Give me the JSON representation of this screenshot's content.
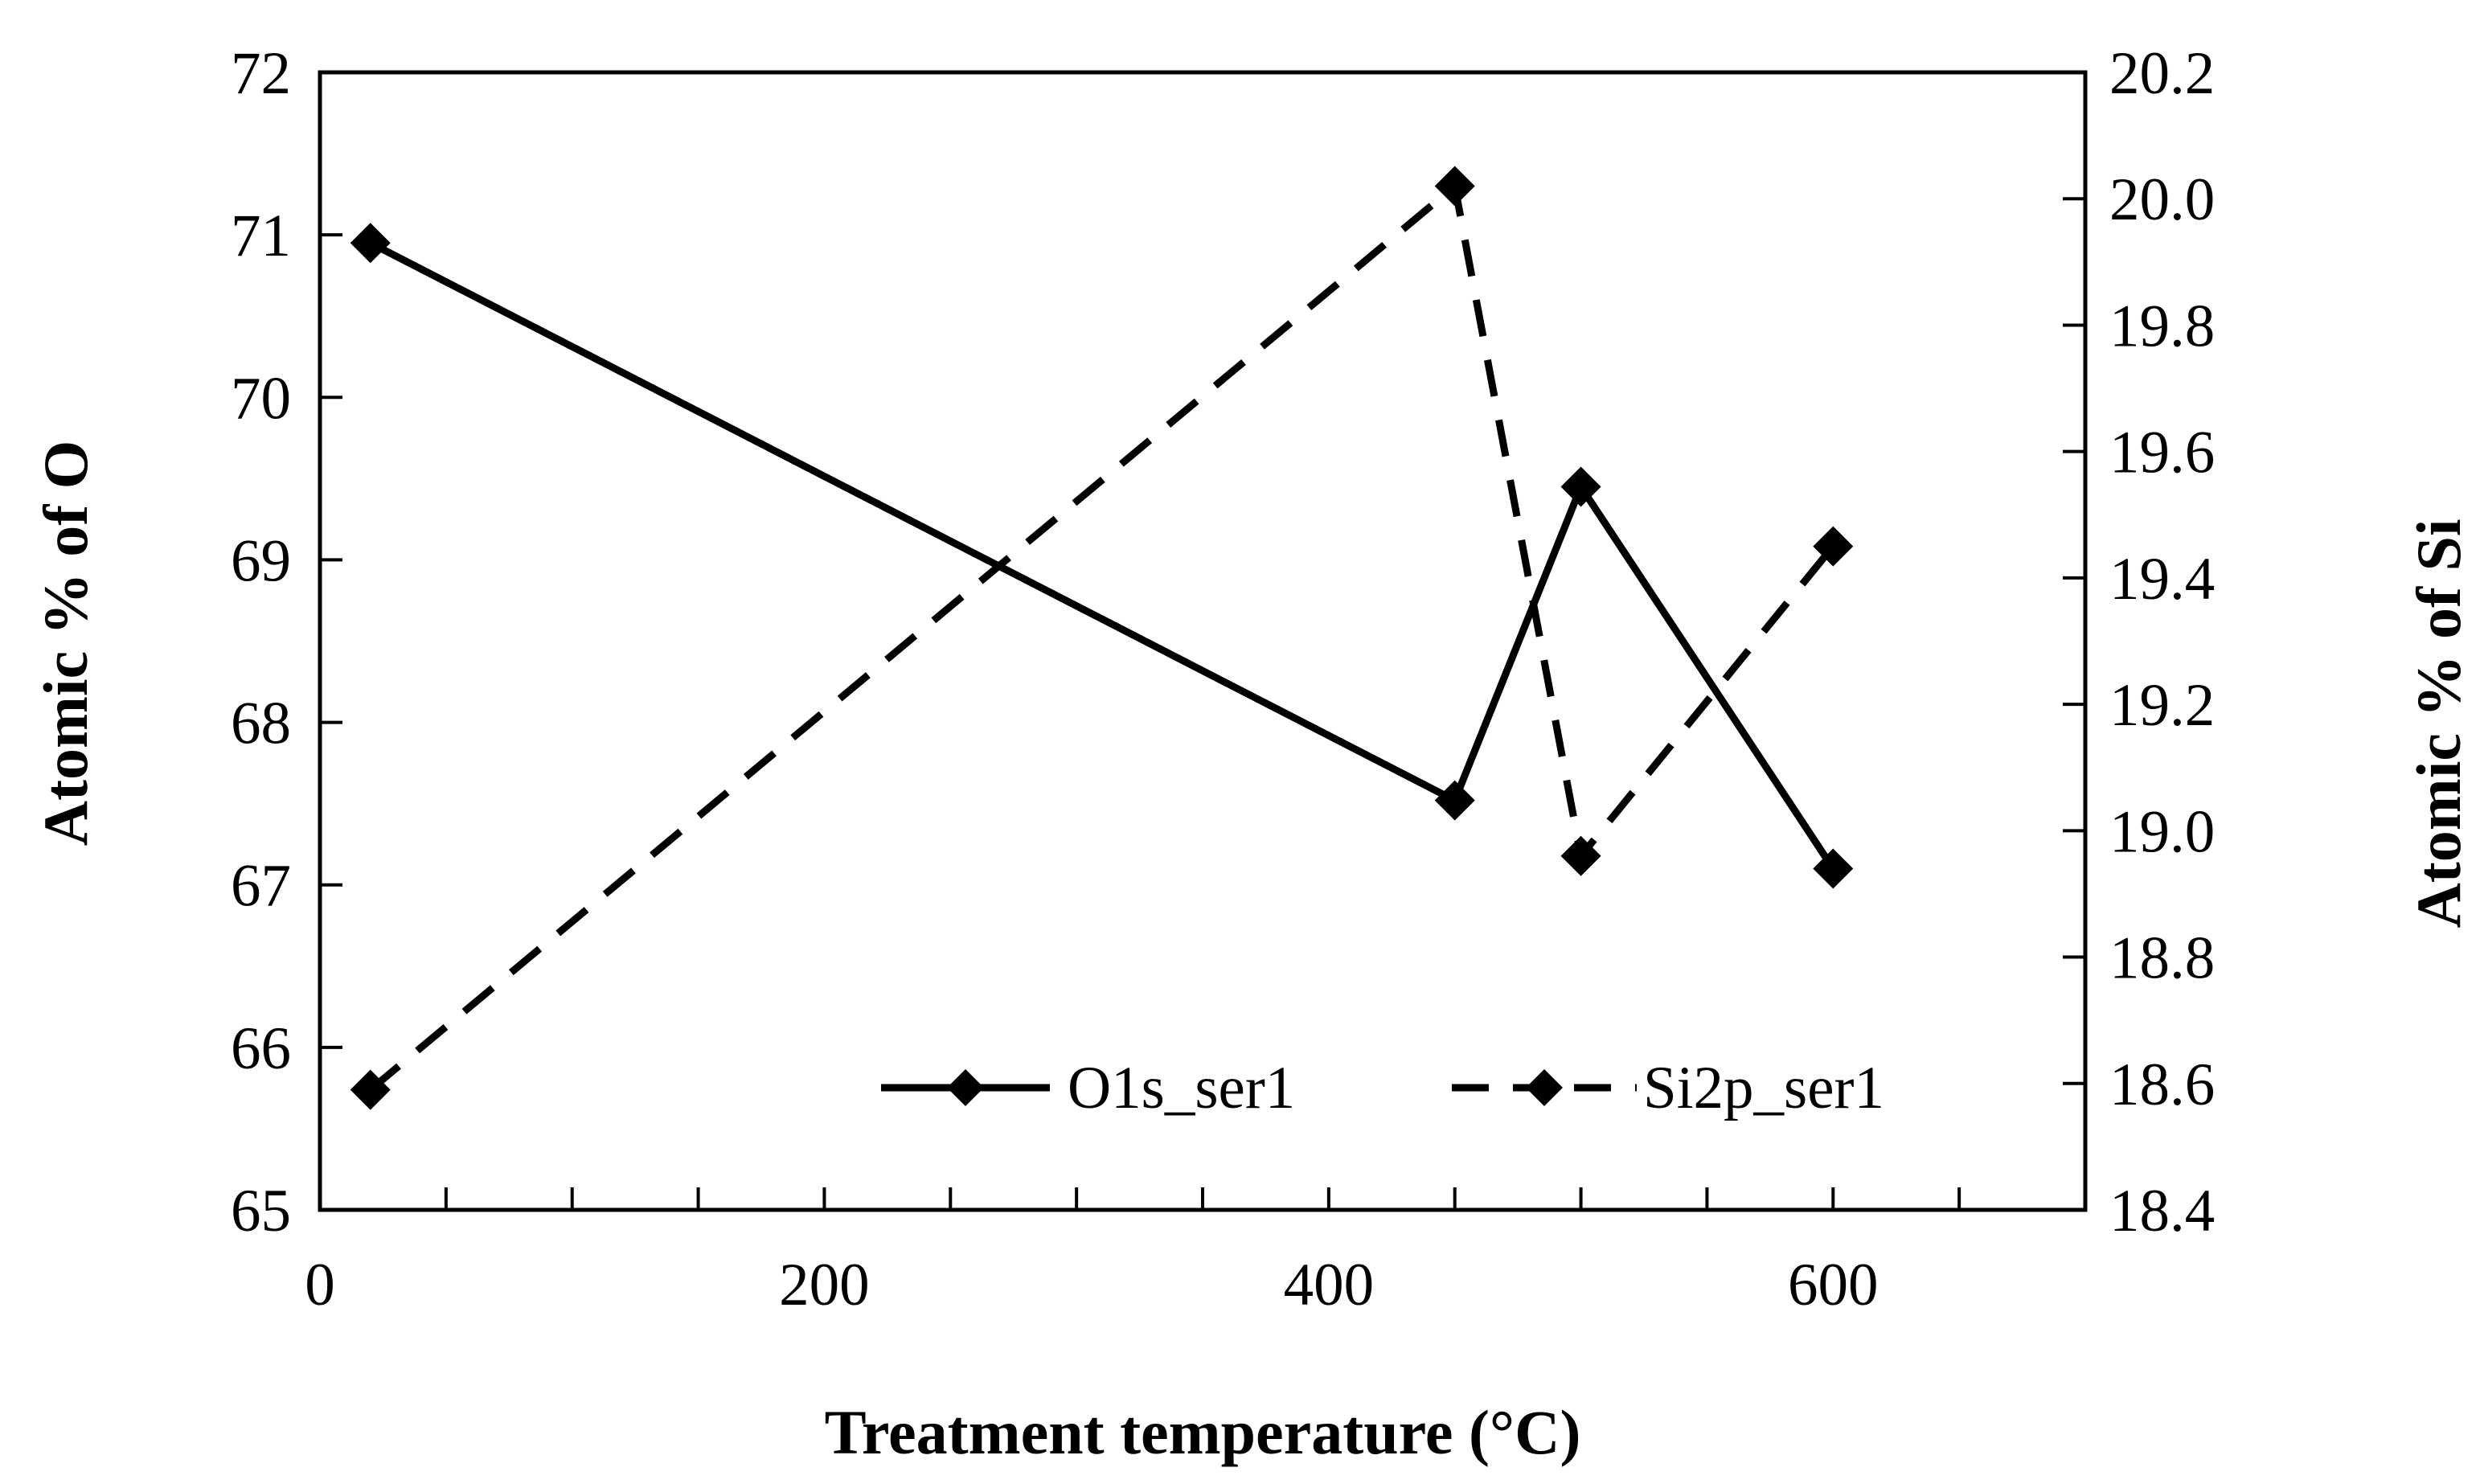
{
  "chart_data": {
    "type": "line",
    "title": "",
    "xlabel": "Treatment temperature (°C)",
    "ylabel_left": "Atomic % of O",
    "ylabel_right": "Atomic % of Si",
    "xlim": [
      0,
      700
    ],
    "ylim_left": [
      65,
      72
    ],
    "ylim_right": [
      18.4,
      20.2
    ],
    "x_ticks": [
      0,
      200,
      400,
      600
    ],
    "x_tick_labels": [
      "0",
      "200",
      "400",
      "600"
    ],
    "x_minor_ticks": [
      50,
      100,
      150,
      200,
      250,
      300,
      350,
      400,
      450,
      500,
      550,
      600,
      650
    ],
    "y_left_ticks": [
      65,
      66,
      67,
      68,
      69,
      70,
      71,
      72
    ],
    "y_left_tick_labels": [
      "65",
      "66",
      "67",
      "68",
      "69",
      "70",
      "71",
      "72"
    ],
    "y_right_ticks": [
      18.4,
      18.6,
      18.8,
      19.0,
      19.2,
      19.4,
      19.6,
      19.8,
      20.0,
      20.2
    ],
    "y_right_tick_labels": [
      "18.4",
      "18.6",
      "18.8",
      "19.0",
      "19.2",
      "19.4",
      "19.6",
      "19.8",
      "20.0",
      "20.2"
    ],
    "grid": false,
    "legend_position": "bottom-right",
    "series": [
      {
        "name": "O1s_ser1",
        "axis": "left",
        "line_style": "solid",
        "marker": "diamond",
        "x": [
          20,
          450,
          500,
          600
        ],
        "values": [
          70.95,
          67.52,
          69.45,
          67.1
        ]
      },
      {
        "name": "Si2p_ser1",
        "axis": "right",
        "line_style": "dashed",
        "marker": "diamond",
        "x": [
          20,
          450,
          500,
          600
        ],
        "values": [
          18.59,
          20.02,
          18.96,
          19.45
        ]
      }
    ],
    "colors": {
      "line": "#000000",
      "marker": "#000000",
      "background": "#ffffff"
    }
  }
}
